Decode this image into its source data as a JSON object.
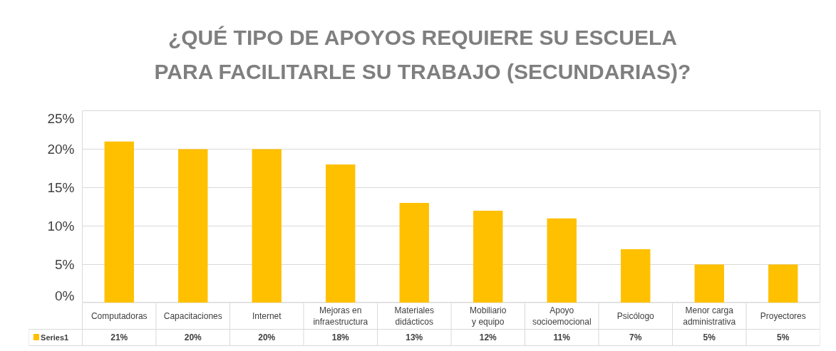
{
  "chart_data": {
    "type": "bar",
    "title": "¿QUÉ TIPO DE APOYOS REQUIERE SU ESCUELA PARA FACILITARLE SU TRABAJO (SECUNDARIAS)?",
    "categories": [
      "Computadoras",
      "Capacitaciones",
      "Internet",
      "Mejoras en infraestructura",
      "Materiales didácticos",
      "Mobiliario y equipo",
      "Apoyo socioemocional",
      "Psicólogo",
      "Menor carga administrativa",
      "Proyectores"
    ],
    "series": [
      {
        "name": "Series1",
        "color": "#ffc000",
        "values": [
          21,
          20,
          20,
          18,
          13,
          12,
          11,
          7,
          5,
          5
        ],
        "value_labels": [
          "21%",
          "20%",
          "20%",
          "18%",
          "13%",
          "12%",
          "11%",
          "7%",
          "5%",
          "5%"
        ]
      }
    ],
    "ylim": [
      0,
      25
    ],
    "yticks": [
      {
        "value": 0,
        "label": "0%"
      },
      {
        "value": 5,
        "label": "5%"
      },
      {
        "value": 10,
        "label": "10%"
      },
      {
        "value": 15,
        "label": "15%"
      },
      {
        "value": 20,
        "label": "20%"
      },
      {
        "value": 25,
        "label": "25%"
      }
    ],
    "grid": "y"
  }
}
